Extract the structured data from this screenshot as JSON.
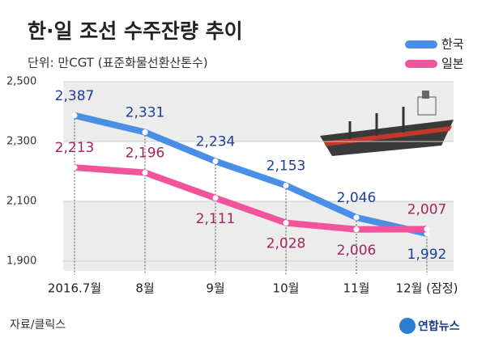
{
  "chart_data": {
    "type": "line",
    "title": "한·일 조선 수주잔량 추이",
    "subtitle": "단위: 만CGT (표준화물선환산톤수)",
    "categories": [
      "2016.7월",
      "8월",
      "9월",
      "10월",
      "11월",
      "12월 (잠정)"
    ],
    "series": [
      {
        "name": "한국",
        "color": "#4a8fe6",
        "label_color": "#1c3d9c",
        "values": [
          2387,
          2331,
          2234,
          2153,
          2046,
          1992
        ],
        "value_labels": [
          "2,387",
          "2,331",
          "2,234",
          "2,153",
          "2,046",
          "1,992"
        ]
      },
      {
        "name": "일본",
        "color": "#f0559c",
        "label_color": "#a3245f",
        "values": [
          2213,
          2196,
          2111,
          2028,
          2006,
          2007
        ],
        "value_labels": [
          "2,213",
          "2,196",
          "2,111",
          "2,028",
          "2,006",
          "2,007"
        ]
      }
    ],
    "ylim": [
      1900,
      2500
    ],
    "yticks": [
      {
        "value": 1900,
        "label": "1,900"
      },
      {
        "value": 2100,
        "label": "2,100"
      },
      {
        "value": 2300,
        "label": "2,300"
      },
      {
        "value": 2500,
        "label": "2,500"
      }
    ],
    "grid": true,
    "legend": "top-right",
    "source": "자료/클릭스",
    "logo": "연합뉴스"
  }
}
